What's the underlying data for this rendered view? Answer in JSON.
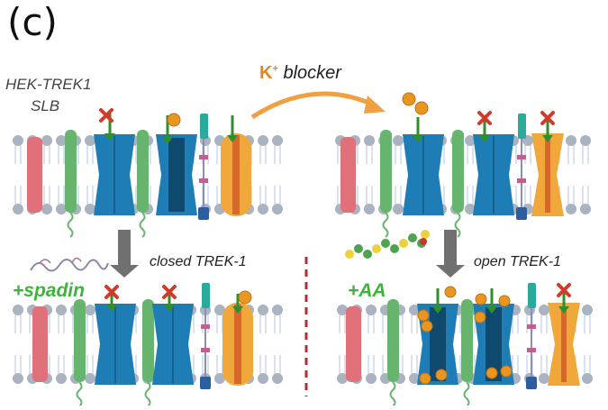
{
  "panel_label": "(c)",
  "cell_label": {
    "line1": "HEK-TREK1",
    "line2": "SLB"
  },
  "blocker_label": {
    "ion": "K",
    "charge": "+",
    "text": " blocker"
  },
  "closed_label": "closed TREK-1",
  "open_label": "open TREK-1",
  "spadin_label": "+spadin",
  "aa_label": "+AA",
  "colors": {
    "membrane_bead": "#a9b3c2",
    "membrane_tail": "#c9d6e6",
    "pink_protein": "#e0707a",
    "green_protein": "#66b46e",
    "blue_channel": "#1f7db5",
    "dark_channel": "#0f4a6e",
    "orange_channel": "#f0a83a",
    "teal_protein": "#2aaa9a",
    "k_ion": "#e8961f",
    "flow_arrow": "#2f8f2f",
    "block_x": "#d23b2b",
    "process_arrow": "#707070",
    "blocker_arrow": "#f0a040",
    "divider": "#b03030"
  }
}
